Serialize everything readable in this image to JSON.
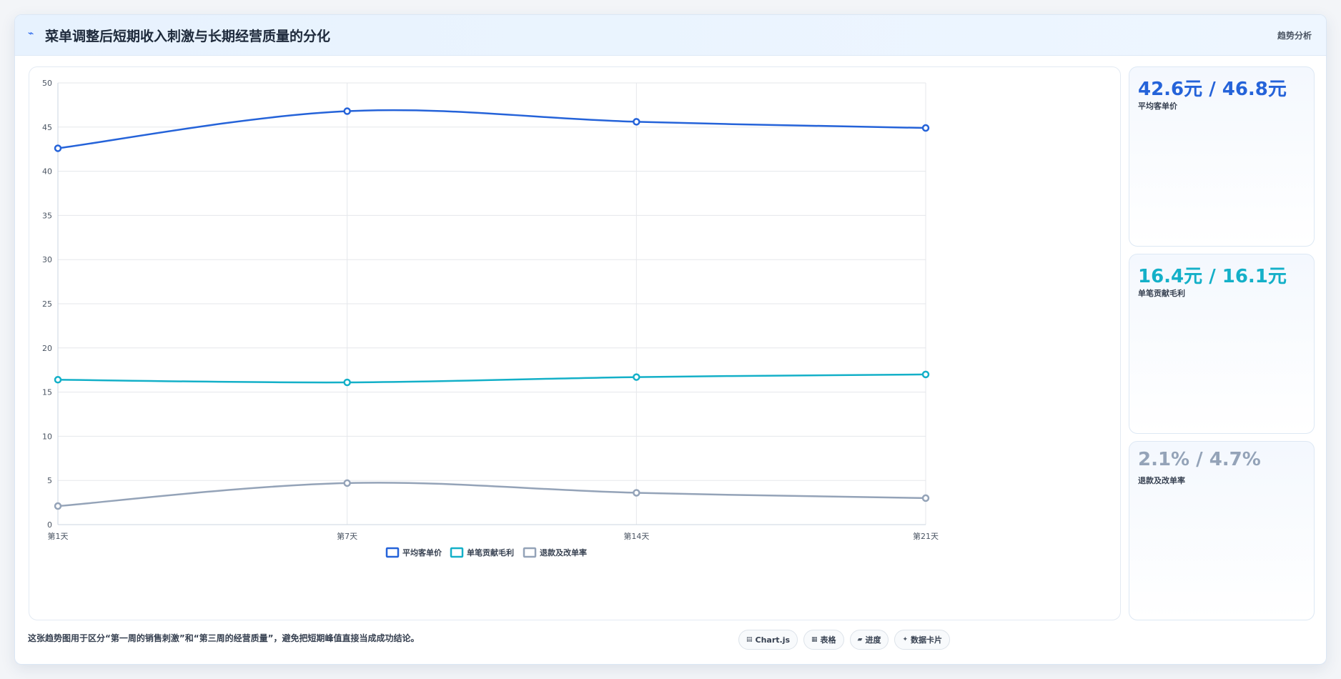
{
  "header": {
    "icon": "trend-line-icon",
    "title": "菜单调整后短期收入刺激与长期经营质量的分化",
    "tag": "趋势分析"
  },
  "chart_data": {
    "type": "line",
    "title": "",
    "xlabel": "",
    "ylabel": "",
    "categories": [
      "第1天",
      "第7天",
      "第14天",
      "第21天"
    ],
    "ylim": [
      0,
      50
    ],
    "yticks": [
      0,
      5,
      10,
      15,
      20,
      25,
      30,
      35,
      40,
      45,
      50
    ],
    "grid": true,
    "legend_position": "bottom",
    "series": [
      {
        "name": "平均客单价",
        "color": "#2563d9",
        "values": [
          42.6,
          46.8,
          45.6,
          44.9
        ]
      },
      {
        "name": "单笔贡献毛利",
        "color": "#14b0c8",
        "values": [
          16.4,
          16.1,
          16.7,
          17.0
        ]
      },
      {
        "name": "退款及改单率",
        "color": "#94a3b8",
        "values": [
          2.1,
          4.7,
          3.6,
          3.0
        ]
      }
    ]
  },
  "stats": [
    {
      "value": "42.6元 / 46.8元",
      "label": "平均客单价",
      "color": "#2563d9"
    },
    {
      "value": "16.4元 / 16.1元",
      "label": "单笔贡献毛利",
      "color": "#14b0c8"
    },
    {
      "value": "2.1% / 4.7%",
      "label": "退款及改单率",
      "color": "#94a3b8"
    }
  ],
  "footer": {
    "note": "这张趋势图用于区分“第一周的销售刺激”和“第三周的经营质量”，避免把短期峰值直接当成成功结论。",
    "chips": [
      {
        "icon": "chart-icon",
        "glyph": "▤",
        "label": "Chart.js"
      },
      {
        "icon": "table-icon",
        "glyph": "▦",
        "label": "表格"
      },
      {
        "icon": "progress-icon",
        "glyph": "▰",
        "label": "进度"
      },
      {
        "icon": "card-icon",
        "glyph": "✦",
        "label": "数据卡片"
      }
    ]
  }
}
